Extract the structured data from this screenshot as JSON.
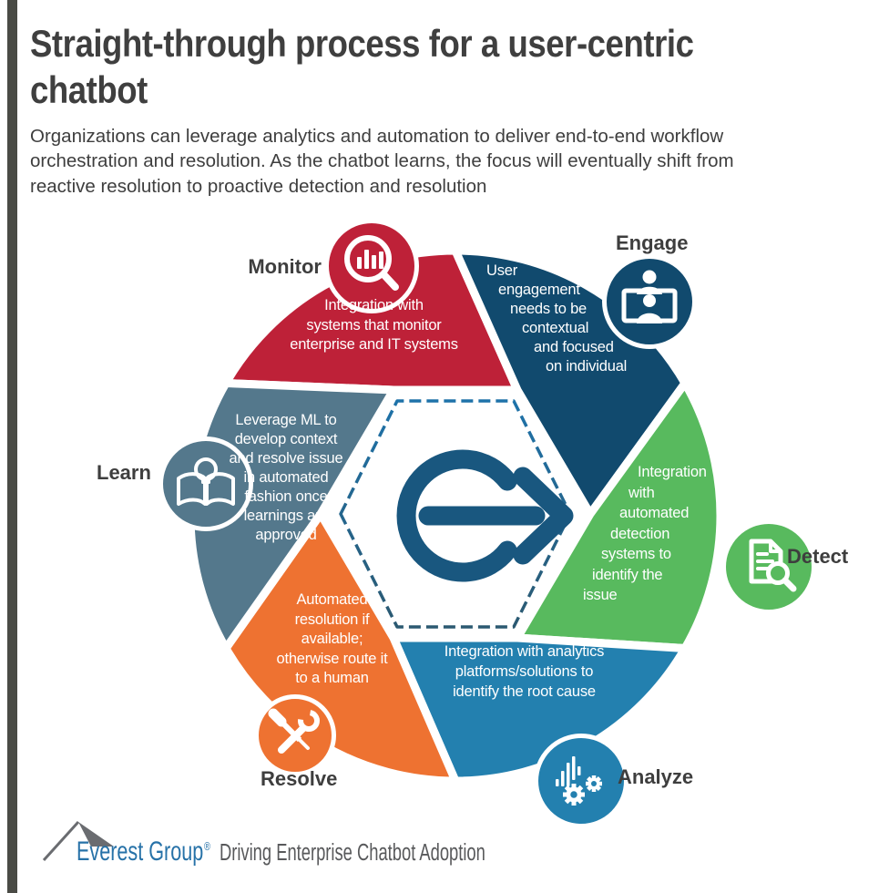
{
  "header": {
    "title_lines": [
      "Straight-through process for a user-centric",
      "chatbot"
    ],
    "subtitle_lines": [
      "Organizations can leverage analytics and automation to deliver end-to-end workflow",
      "orchestration and resolution. As the chatbot learns, the focus will eventually shift from",
      "reactive resolution to proactive detection and resolution"
    ]
  },
  "diagram": {
    "colors": {
      "accent_bar": "#4a4b45",
      "title_text": "#3f3f3f",
      "dash_top": "#1e72a9",
      "dash_bottom": "#2b5971",
      "center_arrow": "#19577f",
      "hexagon_fill": "#ffffff"
    },
    "center_icon": "process-arrow",
    "segments": [
      {
        "id": "monitor",
        "label": "Monitor",
        "color": "#be2138",
        "icon": "bar-chart-magnifier",
        "lines": [
          "Integration with",
          "systems that monitor",
          "enterprise and IT systems"
        ]
      },
      {
        "id": "engage",
        "label": "Engage",
        "color": "#114a6e",
        "icon": "people-screen",
        "lines": [
          "User",
          "engagement",
          "needs to be",
          "contextual",
          "and focused",
          "on individual"
        ]
      },
      {
        "id": "detect",
        "label": "Detect",
        "color": "#58ba5e",
        "icon": "document-magnifier",
        "lines": [
          "Integration",
          "with",
          "automated",
          "detection",
          "systems to",
          "identify the",
          "issue"
        ]
      },
      {
        "id": "analyze",
        "label": "Analyze",
        "color": "#2380af",
        "icon": "chart-gears",
        "lines": [
          "Integration with analytics",
          "platforms/solutions to",
          "identify the root cause"
        ]
      },
      {
        "id": "resolve",
        "label": "Resolve",
        "color": "#ee7231",
        "icon": "crossed-tools",
        "lines": [
          "Automated",
          "resolution if",
          "available;",
          "otherwise route it",
          "to a human"
        ]
      },
      {
        "id": "learn",
        "label": "Learn",
        "color": "#54788c",
        "icon": "book-lightbulb",
        "lines": [
          "Leverage ML to",
          "develop context",
          "and resolve issue",
          "in automated",
          "fashion once",
          "learnings are",
          "approved"
        ]
      }
    ]
  },
  "footer": {
    "brand": "Everest Group",
    "registered": "®",
    "tagline": "Driving Enterprise Chatbot Adoption",
    "brand_color": "#2772a8",
    "tagline_color": "#58595b",
    "mountain_color": "#6a6c70"
  }
}
